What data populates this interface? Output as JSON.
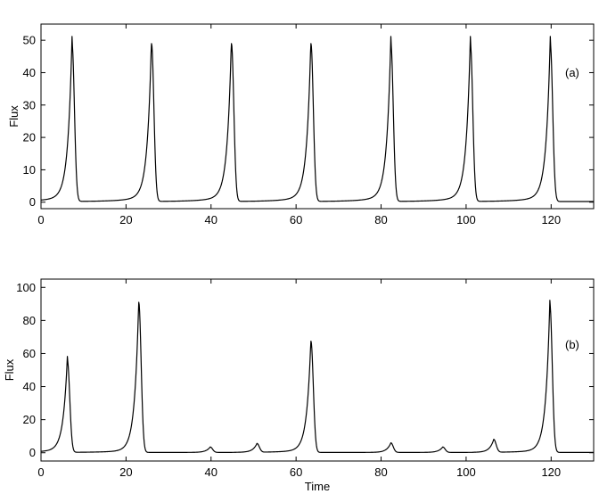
{
  "chart_data": [
    {
      "type": "line",
      "panel_label": "(a)",
      "xlabel": "",
      "ylabel": "Flux",
      "xlim": [
        0,
        130
      ],
      "ylim": [
        -2,
        55
      ],
      "xticks": [
        0,
        20,
        40,
        60,
        80,
        100,
        120
      ],
      "yticks": [
        0,
        10,
        20,
        30,
        40,
        50
      ],
      "grid": false,
      "line_color": "#000000",
      "series": [
        {
          "name": "",
          "peaks": [
            {
              "t": 7.3,
              "height": 49
            },
            {
              "t": 26.0,
              "height": 49
            },
            {
              "t": 44.8,
              "height": 49
            },
            {
              "t": 63.5,
              "height": 49
            },
            {
              "t": 82.3,
              "height": 49
            },
            {
              "t": 101.0,
              "height": 49
            },
            {
              "t": 119.8,
              "height": 49
            }
          ],
          "baseline": 0.2,
          "start_value": 1.8,
          "end_value": 1.3
        }
      ]
    },
    {
      "type": "line",
      "panel_label": "(b)",
      "xlabel": "Time",
      "ylabel": "Flux",
      "xlim": [
        0,
        130
      ],
      "ylim": [
        -5,
        105
      ],
      "xticks": [
        0,
        20,
        40,
        60,
        80,
        100,
        120
      ],
      "yticks": [
        0,
        20,
        40,
        60,
        80,
        100
      ],
      "grid": false,
      "line_color": "#000000",
      "series": [
        {
          "name": "",
          "peaks": [
            {
              "t": 6.2,
              "height": 56
            },
            {
              "t": 23.0,
              "height": 91
            },
            {
              "t": 39.8,
              "height": 3.5
            },
            {
              "t": 50.8,
              "height": 5.5
            },
            {
              "t": 63.5,
              "height": 67.5
            },
            {
              "t": 82.3,
              "height": 6
            },
            {
              "t": 94.5,
              "height": 3.5
            },
            {
              "t": 106.5,
              "height": 8
            },
            {
              "t": 119.7,
              "height": 90
            }
          ],
          "baseline": 0.2,
          "start_value": 2.2,
          "end_value": 1.0
        }
      ]
    }
  ]
}
